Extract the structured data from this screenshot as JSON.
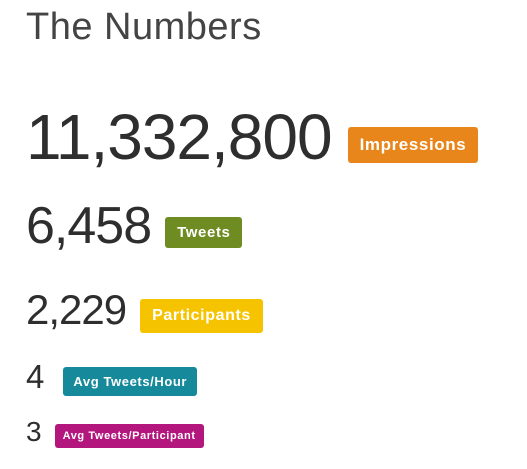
{
  "title": "The Numbers",
  "stats": [
    {
      "value": "11,332,800",
      "label": "Impressions",
      "color": "#e8861c"
    },
    {
      "value": "6,458",
      "label": "Tweets",
      "color": "#6f8c22"
    },
    {
      "value": "2,229",
      "label": "Participants",
      "color": "#f5c300"
    },
    {
      "value": "4",
      "label": "Avg Tweets/Hour",
      "color": "#16899b"
    },
    {
      "value": "3",
      "label": "Avg Tweets/Participant",
      "color": "#b3177d"
    }
  ]
}
